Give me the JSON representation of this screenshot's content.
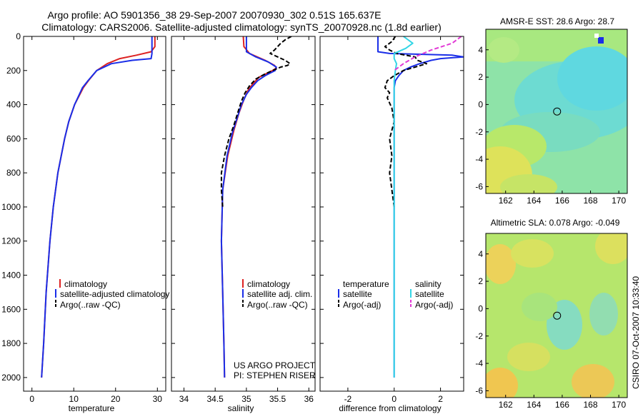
{
  "header": {
    "title_line1": "Argo profile: AO 5901356_38 29-Sep-2007 20070930_302 0.51S 165.637E",
    "title_line2": "Climatology: CARS2006. Satellite-adjusted climatology: synTS_20070928.nc (1.8d earlier)"
  },
  "side_label": "CSIRO 07-Oct-2007 10:33:40",
  "colors": {
    "climatology": "#dd2222",
    "satellite": "#1a2ee8",
    "argo": "#000000",
    "sat_salinity": "#33d6e6",
    "argo_adj_salinity": "#e23ad6",
    "map_teal": "#66dcdc",
    "map_green": "#a8e876",
    "map_yellow": "#e6e25a",
    "map_orange": "#f2c84a"
  },
  "chart_data": [
    {
      "type": "line",
      "panel": "temperature",
      "xlabel": "temperature",
      "ylabel": "",
      "xlim": [
        -2,
        32
      ],
      "ylim": [
        2080,
        0
      ],
      "xticks": [
        0,
        10,
        20,
        30
      ],
      "yticks": [
        0,
        200,
        400,
        600,
        800,
        1000,
        1200,
        1400,
        1600,
        1800,
        2000
      ],
      "legend": [
        {
          "label": "climatology",
          "color": "#dd2222"
        },
        {
          "label": "satellite-adjusted climatology",
          "color": "#1a2ee8"
        },
        {
          "label": "Argo(..raw -QC)",
          "color": "#000000"
        }
      ],
      "series": [
        {
          "name": "climatology",
          "color": "#dd2222",
          "dash": false,
          "depth": [
            0,
            60,
            90,
            110,
            130,
            160,
            200,
            260,
            300,
            400,
            500,
            600,
            800,
            1000,
            1200,
            1500,
            1800,
            2000
          ],
          "values": [
            29.4,
            29.4,
            28.5,
            25,
            21,
            18,
            15.5,
            13.5,
            12.3,
            10.2,
            8.8,
            7.8,
            6.2,
            5.1,
            4.3,
            3.4,
            2.8,
            2.3
          ]
        },
        {
          "name": "satellite-adjusted climatology",
          "color": "#1a2ee8",
          "dash": false,
          "depth": [
            0,
            100,
            130,
            140,
            160,
            200,
            260,
            300,
            400,
            500,
            600,
            800,
            1000,
            1200,
            1500,
            1800,
            2000
          ],
          "values": [
            28.7,
            28.7,
            28.5,
            24,
            19,
            15.5,
            13.4,
            12.1,
            10.2,
            8.8,
            7.8,
            6.2,
            5.1,
            4.3,
            3.4,
            2.8,
            2.3
          ]
        }
      ]
    },
    {
      "type": "line",
      "panel": "salinity",
      "xlabel": "salinity",
      "ylabel": "",
      "xlim": [
        33.8,
        36.1
      ],
      "ylim": [
        2080,
        0
      ],
      "xticks": [
        34,
        34.5,
        35,
        35.5,
        36
      ],
      "legend": [
        {
          "label": "climatology",
          "color": "#dd2222"
        },
        {
          "label": "satellite adj. clim.",
          "color": "#1a2ee8"
        },
        {
          "label": "Argo(..raw -QC)",
          "color": "#000000"
        }
      ],
      "annotation": [
        "US ARGO PROJECT",
        "PI: STEPHEN RISER"
      ],
      "series": [
        {
          "name": "climatology",
          "color": "#dd2222",
          "dash": false,
          "depth": [
            0,
            60,
            100,
            140,
            170,
            185,
            200,
            240,
            280,
            320,
            380,
            450,
            550,
            700,
            900,
            1200,
            1500,
            1800,
            2000
          ],
          "values": [
            34.95,
            34.96,
            35.05,
            35.3,
            35.45,
            35.48,
            35.42,
            35.2,
            35.1,
            35.02,
            34.95,
            34.88,
            34.8,
            34.7,
            34.62,
            34.6,
            34.62,
            34.64,
            34.65
          ]
        },
        {
          "name": "satellite adj. clim.",
          "color": "#1a2ee8",
          "dash": false,
          "depth": [
            0,
            90,
            120,
            150,
            180,
            200,
            230,
            260,
            300,
            340,
            400,
            470,
            560,
            700,
            900,
            1200,
            1500,
            1800,
            2000
          ],
          "values": [
            35.0,
            35.0,
            35.15,
            35.35,
            35.48,
            35.46,
            35.3,
            35.18,
            35.08,
            35.0,
            34.92,
            34.86,
            34.78,
            34.69,
            34.62,
            34.6,
            34.62,
            34.64,
            34.65
          ]
        },
        {
          "name": "Argo(..raw -QC)",
          "color": "#000000",
          "dash": true,
          "depth": [
            0,
            20,
            40,
            60,
            80,
            100,
            120,
            140,
            160,
            170,
            180,
            200,
            220,
            250,
            290,
            330,
            380,
            450,
            520,
            600,
            700,
            800,
            900,
            1000
          ],
          "values": [
            35.72,
            35.62,
            35.55,
            35.5,
            35.45,
            35.38,
            35.5,
            35.62,
            35.7,
            35.66,
            35.55,
            35.42,
            35.3,
            35.15,
            35.05,
            34.98,
            34.92,
            34.86,
            34.8,
            34.72,
            34.65,
            34.6,
            34.6,
            34.62
          ]
        }
      ]
    },
    {
      "type": "line",
      "panel": "difference",
      "xlabel": "difference from climatology",
      "ylabel": "",
      "xlim": [
        -3.2,
        3.0
      ],
      "ylim": [
        2080,
        0
      ],
      "xticks": [
        -2,
        0,
        2
      ],
      "legend": [
        {
          "label": "temperature",
          "color": "",
          "heading": true
        },
        {
          "label": "satellite",
          "color": "#1a2ee8"
        },
        {
          "label": "Argo(-adj)",
          "color": "#000000"
        },
        {
          "label": "salinity",
          "color": "",
          "heading": true
        },
        {
          "label": "satellite",
          "color": "#33d6e6"
        },
        {
          "label": "Argo(-adj)",
          "color": "#e23ad6"
        }
      ],
      "series": [
        {
          "name": "temperature satellite",
          "color": "#1a2ee8",
          "dash": false,
          "depth": [
            0,
            50,
            90,
            100,
            110,
            120,
            130,
            140,
            160,
            180,
            200,
            230,
            260,
            300,
            400,
            600,
            1000,
            2000
          ],
          "values": [
            -0.7,
            -0.7,
            -0.7,
            -0.2,
            2.5,
            3.0,
            2.0,
            1.6,
            1.1,
            0.7,
            0.4,
            0.2,
            0.05,
            0,
            0,
            0,
            0,
            0
          ]
        },
        {
          "name": "temperature Argo(-adj)",
          "color": "#000000",
          "dash": true,
          "depth": [
            0,
            30,
            60,
            80,
            100,
            120,
            140,
            160,
            180,
            200,
            230,
            260,
            300,
            330,
            360,
            420,
            500,
            600,
            700,
            800,
            900,
            1000
          ],
          "values": [
            0.05,
            -0.1,
            -0.4,
            -0.2,
            0.1,
            0.9,
            1.0,
            1.4,
            0.9,
            0.4,
            0.0,
            -0.3,
            -0.4,
            -0.2,
            -0.3,
            -0.1,
            0.0,
            -0.2,
            -0.1,
            -0.2,
            -0.1,
            0.0
          ]
        },
        {
          "name": "salinity satellite",
          "color": "#33d6e6",
          "dash": false,
          "depth": [
            0,
            40,
            70,
            100,
            130,
            160,
            200,
            260,
            350,
            500,
            800,
            1200,
            1600,
            2000
          ],
          "values": [
            0.4,
            0.8,
            0.5,
            0.0,
            0.0,
            0.1,
            0.05,
            0.0,
            0.0,
            0.0,
            0.0,
            0.0,
            0.0,
            0.0
          ]
        },
        {
          "name": "salinity Argo(-adj)",
          "color": "#e23ad6",
          "dash": true,
          "depth": [
            0,
            40,
            80,
            120,
            160,
            200
          ],
          "values": [
            2.9,
            2.5,
            1.6,
            0.9,
            0.4,
            0.0
          ]
        }
      ]
    },
    {
      "type": "heatmap",
      "panel": "sst-map",
      "title": "AMSR-E SST: 28.6 Argo: 28.7",
      "xlim": [
        160.6,
        170.6
      ],
      "ylim": [
        -6.5,
        5.5
      ],
      "xticks": [
        162,
        164,
        166,
        168,
        170
      ],
      "yticks": [
        4,
        2,
        0,
        -2,
        -4,
        -6
      ],
      "marker": {
        "lon": 165.637,
        "lat": -0.51
      }
    },
    {
      "type": "heatmap",
      "panel": "sla-map",
      "title": "Altimetric SLA: 0.078 Argo: -0.049",
      "xlim": [
        160.6,
        170.6
      ],
      "ylim": [
        -6.5,
        5.5
      ],
      "xticks": [
        162,
        164,
        166,
        168,
        170
      ],
      "yticks": [
        4,
        2,
        0,
        -2,
        -4,
        -6
      ],
      "marker": {
        "lon": 165.637,
        "lat": -0.51
      }
    }
  ]
}
